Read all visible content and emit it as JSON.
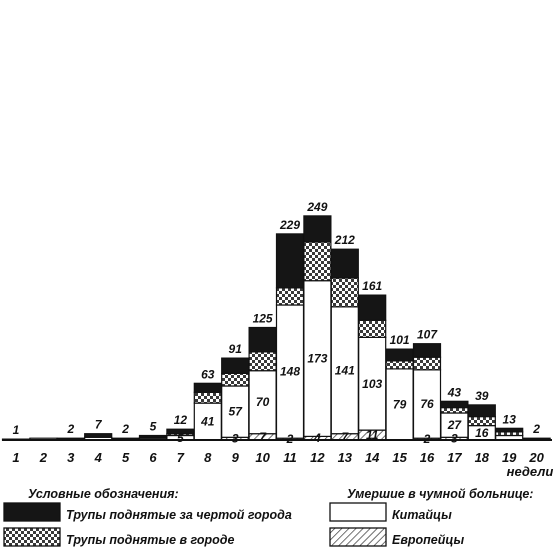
{
  "chart_data": {
    "type": "bar",
    "stacked": true,
    "xlabel": "недели",
    "categories": [
      "1",
      "2",
      "3",
      "4",
      "5",
      "6",
      "7",
      "8",
      "9",
      "10",
      "11",
      "12",
      "13",
      "14",
      "15",
      "16",
      "17",
      "18",
      "19",
      "20"
    ],
    "totals": [
      1,
      null,
      2,
      7,
      2,
      5,
      12,
      63,
      91,
      125,
      229,
      249,
      212,
      161,
      101,
      107,
      43,
      39,
      13,
      2
    ],
    "series": [
      {
        "name": "Европейцы",
        "pattern": "hatch",
        "values": [
          0,
          0,
          0,
          0,
          0,
          0,
          0,
          0,
          3,
          7,
          2,
          4,
          7,
          11,
          0,
          2,
          3,
          0,
          0,
          0
        ],
        "labels": [
          "",
          "",
          "",
          "",
          "",
          "",
          "",
          "",
          "3",
          "7",
          "2",
          "4",
          "7",
          "11",
          "",
          "2",
          "3",
          "",
          "",
          ""
        ]
      },
      {
        "name": "Китайцы",
        "pattern": "white",
        "values": [
          1,
          2,
          0,
          3,
          0,
          2,
          5,
          41,
          57,
          70,
          148,
          173,
          141,
          103,
          79,
          76,
          27,
          16,
          5,
          1
        ],
        "labels": [
          "",
          "",
          "",
          "",
          "",
          "",
          "5",
          "41",
          "57",
          "70",
          "148",
          "173",
          "141",
          "103",
          "79",
          "76",
          "27",
          "16",
          "",
          ""
        ]
      },
      {
        "name": "Трупы поднятые в городе",
        "pattern": "checker",
        "values": [
          0,
          0,
          0,
          0,
          1,
          1,
          2,
          12,
          14,
          21,
          19,
          43,
          32,
          19,
          9,
          14,
          6,
          10,
          4,
          0
        ],
        "labels": [
          "",
          "",
          "",
          "",
          "",
          "",
          "",
          "",
          "",
          "",
          "",
          "",
          "",
          "",
          "",
          "",
          "",
          "",
          "",
          ""
        ]
      },
      {
        "name": "Трупы поднятые за чертой города",
        "pattern": "black",
        "values": [
          0,
          0,
          2,
          4,
          1,
          2,
          5,
          10,
          17,
          27,
          60,
          29,
          32,
          28,
          13,
          15,
          7,
          13,
          4,
          1
        ],
        "labels": [
          "",
          "",
          "",
          "",
          "",
          "",
          "",
          "",
          "",
          "",
          "",
          "",
          "",
          "",
          "",
          "",
          "",
          "",
          "",
          ""
        ]
      }
    ],
    "legend": {
      "title_left": "Условные обозначения:",
      "title_right": "Умершие в чумной больнице:",
      "items": [
        {
          "label": "Трупы поднятые за чертой города",
          "pattern": "black"
        },
        {
          "label": "Трупы поднятые в городе",
          "pattern": "checker"
        },
        {
          "label": "Китайцы",
          "pattern": "white"
        },
        {
          "label": "Европейцы",
          "pattern": "hatch"
        }
      ]
    },
    "ylim": [
      0,
      249
    ],
    "grid": false
  }
}
